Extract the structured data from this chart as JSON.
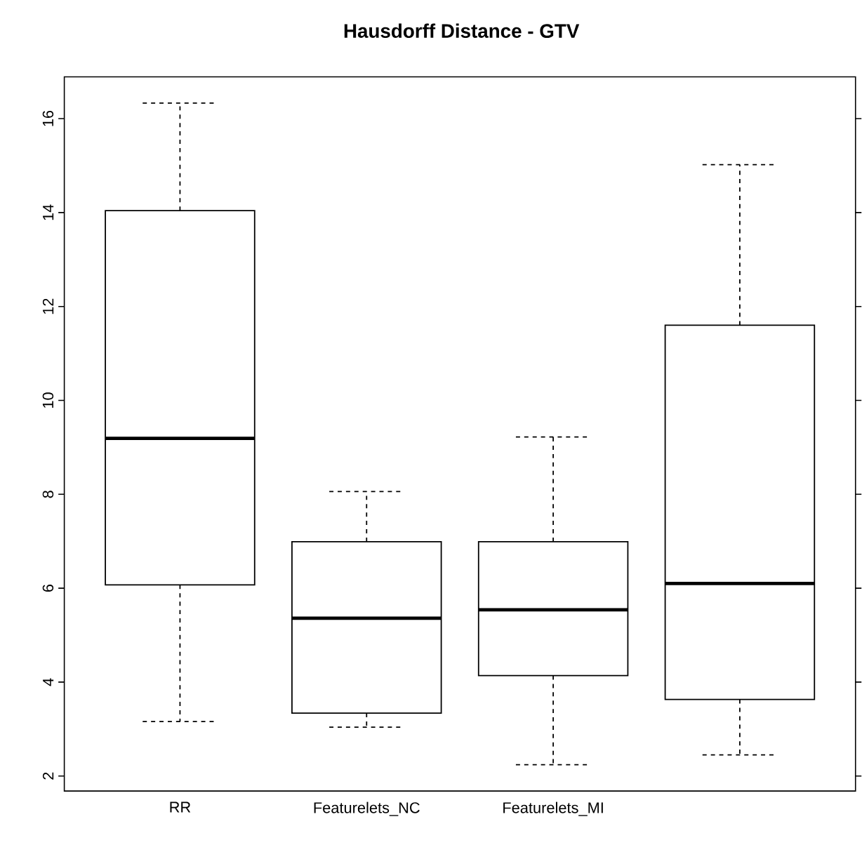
{
  "chart_data": {
    "type": "box",
    "title": "Hausdorff Distance - GTV",
    "categories": [
      "RR",
      "Featurelets_NC",
      "Featurelets_MI",
      null
    ],
    "boxes": [
      {
        "low": 3.16,
        "q1": 6.07,
        "median": 9.19,
        "q3": 14.04,
        "high": 16.33
      },
      {
        "low": 3.04,
        "q1": 3.34,
        "median": 5.36,
        "q3": 6.99,
        "high": 8.06
      },
      {
        "low": 2.24,
        "q1": 4.14,
        "median": 5.54,
        "q3": 6.99,
        "high": 9.22
      },
      {
        "low": 2.45,
        "q1": 3.63,
        "median": 6.1,
        "q3": 11.6,
        "high": 15.02
      }
    ],
    "ylim": [
      1.68,
      16.89
    ],
    "yticks": [
      2,
      4,
      6,
      8,
      10,
      12,
      14,
      16
    ]
  }
}
